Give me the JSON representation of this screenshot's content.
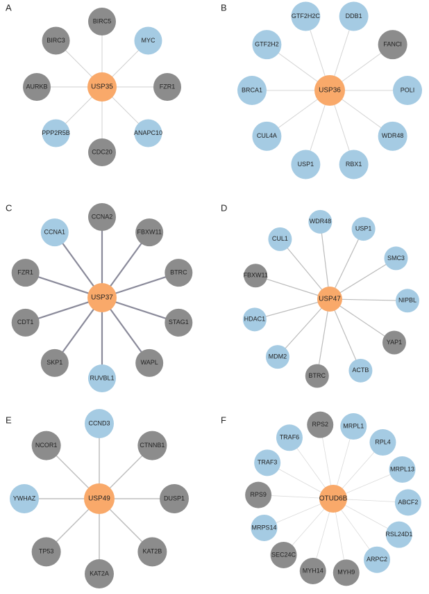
{
  "panels": [
    {
      "label": "A",
      "center": {
        "label": "USP35",
        "color": "#f9a96a"
      },
      "nodes": [
        {
          "label": "BIRC5",
          "color": "#8c8c8c"
        },
        {
          "label": "MYC",
          "color": "#a5cbe3"
        },
        {
          "label": "FZR1",
          "color": "#8c8c8c"
        },
        {
          "label": "ANAPC10",
          "color": "#a5cbe3"
        },
        {
          "label": "CDC20",
          "color": "#8c8c8c"
        },
        {
          "label": "PPP2R5B",
          "color": "#a5cbe3"
        },
        {
          "label": "AURKB",
          "color": "#8c8c8c"
        },
        {
          "label": "BIRC3",
          "color": "#8c8c8c"
        }
      ]
    },
    {
      "label": "B",
      "center": {
        "label": "USP36",
        "color": "#f9a96a"
      },
      "nodes": [
        {
          "label": "GTF2H2C",
          "color": "#a5cbe3"
        },
        {
          "label": "DDB1",
          "color": "#a5cbe3"
        },
        {
          "label": "FANCI",
          "color": "#8c8c8c"
        },
        {
          "label": "POLI",
          "color": "#a5cbe3"
        },
        {
          "label": "WDR48",
          "color": "#a5cbe3"
        },
        {
          "label": "RBX1",
          "color": "#a5cbe3"
        },
        {
          "label": "USP1",
          "color": "#a5cbe3"
        },
        {
          "label": "CUL4A",
          "color": "#a5cbe3"
        },
        {
          "label": "BRCA1",
          "color": "#a5cbe3"
        },
        {
          "label": "GTF2H2",
          "color": "#a5cbe3"
        }
      ]
    },
    {
      "label": "C",
      "center": {
        "label": "USP37",
        "color": "#f9a96a"
      },
      "nodes": [
        {
          "label": "CCNA2",
          "color": "#8c8c8c"
        },
        {
          "label": "FBXW11",
          "color": "#8c8c8c"
        },
        {
          "label": "BTRC",
          "color": "#8c8c8c"
        },
        {
          "label": "STAG1",
          "color": "#8c8c8c"
        },
        {
          "label": "WAPL",
          "color": "#8c8c8c"
        },
        {
          "label": "RUVBL1",
          "color": "#a5cbe3"
        },
        {
          "label": "SKP1",
          "color": "#8c8c8c"
        },
        {
          "label": "CDT1",
          "color": "#8c8c8c"
        },
        {
          "label": "FZR1",
          "color": "#8c8c8c"
        },
        {
          "label": "CCNA1",
          "color": "#a5cbe3"
        }
      ]
    },
    {
      "label": "D",
      "center": {
        "label": "USP47",
        "color": "#f9a96a"
      },
      "nodes": [
        {
          "label": "WDR48",
          "color": "#a5cbe3"
        },
        {
          "label": "USP1",
          "color": "#a5cbe3"
        },
        {
          "label": "SMC3",
          "color": "#a5cbe3"
        },
        {
          "label": "NIPBL",
          "color": "#a5cbe3"
        },
        {
          "label": "YAP1",
          "color": "#8c8c8c"
        },
        {
          "label": "ACTB",
          "color": "#a5cbe3"
        },
        {
          "label": "BTRC",
          "color": "#8c8c8c"
        },
        {
          "label": "MDM2",
          "color": "#a5cbe3"
        },
        {
          "label": "HDAC1",
          "color": "#a5cbe3"
        },
        {
          "label": "FBXW11",
          "color": "#8c8c8c"
        },
        {
          "label": "CUL1",
          "color": "#a5cbe3"
        }
      ]
    },
    {
      "label": "E",
      "center": {
        "label": "USP49",
        "color": "#f9a96a"
      },
      "nodes": [
        {
          "label": "CCND3",
          "color": "#a5cbe3"
        },
        {
          "label": "CTNNB1",
          "color": "#8c8c8c"
        },
        {
          "label": "DUSP1",
          "color": "#8c8c8c"
        },
        {
          "label": "KAT2B",
          "color": "#8c8c8c"
        },
        {
          "label": "KAT2A",
          "color": "#8c8c8c"
        },
        {
          "label": "TP53",
          "color": "#8c8c8c"
        },
        {
          "label": "YWHAZ",
          "color": "#a5cbe3"
        },
        {
          "label": "NCOR1",
          "color": "#8c8c8c"
        }
      ]
    },
    {
      "label": "F",
      "center": {
        "label": "OTUD6B",
        "color": "#f9a96a"
      },
      "nodes": [
        {
          "label": "RPS2",
          "color": "#8c8c8c"
        },
        {
          "label": "MRPL1",
          "color": "#a5cbe3"
        },
        {
          "label": "RPL4",
          "color": "#a5cbe3"
        },
        {
          "label": "MRPL13",
          "color": "#a5cbe3"
        },
        {
          "label": "ABCF2",
          "color": "#a5cbe3"
        },
        {
          "label": "RSL24D1",
          "color": "#a5cbe3"
        },
        {
          "label": "ARPC2",
          "color": "#a5cbe3"
        },
        {
          "label": "MYH9",
          "color": "#8c8c8c"
        },
        {
          "label": "MYH14",
          "color": "#8c8c8c"
        },
        {
          "label": "SEC24C",
          "color": "#8c8c8c"
        },
        {
          "label": "MRPS14",
          "color": "#a5cbe3"
        },
        {
          "label": "RPS9",
          "color": "#8c8c8c"
        },
        {
          "label": "TRAF3",
          "color": "#a5cbe3"
        },
        {
          "label": "TRAF6",
          "color": "#a5cbe3"
        }
      ]
    }
  ]
}
